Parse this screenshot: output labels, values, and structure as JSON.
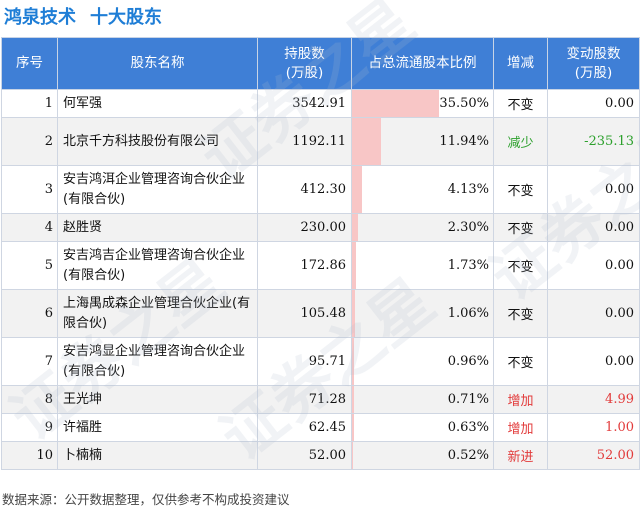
{
  "title": {
    "company": "鸿泉技术",
    "subtitle": "十大股东"
  },
  "headers": [
    "序号",
    "股东名称",
    "持股数\n(万股)",
    "占总流通股本比例",
    "增减",
    "变动股数\n(万股)"
  ],
  "rows": [
    {
      "idx": "1",
      "name": "何军强",
      "shares": "3542.91",
      "ratio": "35.50%",
      "ratio_value": 35.5,
      "change": "不变",
      "change_type": "same",
      "delta": "0.00"
    },
    {
      "idx": "2",
      "name": "北京千方科技股份有限公司",
      "shares": "1192.11",
      "ratio": "11.94%",
      "ratio_value": 11.94,
      "change": "减少",
      "change_type": "down",
      "delta": "-235.13"
    },
    {
      "idx": "3",
      "name": "安吉鸿洱企业管理咨询合伙企业(有限合伙)",
      "shares": "412.30",
      "ratio": "4.13%",
      "ratio_value": 4.13,
      "change": "不变",
      "change_type": "same",
      "delta": "0.00"
    },
    {
      "idx": "4",
      "name": "赵胜贤",
      "shares": "230.00",
      "ratio": "2.30%",
      "ratio_value": 2.3,
      "change": "不变",
      "change_type": "same",
      "delta": "0.00"
    },
    {
      "idx": "5",
      "name": "安吉鸿吉企业管理咨询合伙企业(有限合伙)",
      "shares": "172.86",
      "ratio": "1.73%",
      "ratio_value": 1.73,
      "change": "不变",
      "change_type": "same",
      "delta": "0.00"
    },
    {
      "idx": "6",
      "name": "上海禺成森企业管理合伙企业(有限合伙)",
      "shares": "105.48",
      "ratio": "1.06%",
      "ratio_value": 1.06,
      "change": "不变",
      "change_type": "same",
      "delta": "0.00"
    },
    {
      "idx": "7",
      "name": "安吉鸿显企业管理咨询合伙企业(有限合伙)",
      "shares": "95.71",
      "ratio": "0.96%",
      "ratio_value": 0.96,
      "change": "不变",
      "change_type": "same",
      "delta": "0.00"
    },
    {
      "idx": "8",
      "name": "王光坤",
      "shares": "71.28",
      "ratio": "0.71%",
      "ratio_value": 0.71,
      "change": "增加",
      "change_type": "up",
      "delta": "4.99"
    },
    {
      "idx": "9",
      "name": "许福胜",
      "shares": "62.45",
      "ratio": "0.63%",
      "ratio_value": 0.63,
      "change": "增加",
      "change_type": "up",
      "delta": "1.00"
    },
    {
      "idx": "10",
      "name": "卜楠楠",
      "shares": "52.00",
      "ratio": "0.52%",
      "ratio_value": 0.52,
      "change": "新进",
      "change_type": "up",
      "delta": "52.00"
    }
  ],
  "footer": "数据来源：公开数据整理，仅供参考不构成投资建议",
  "watermark": "证券之星"
}
